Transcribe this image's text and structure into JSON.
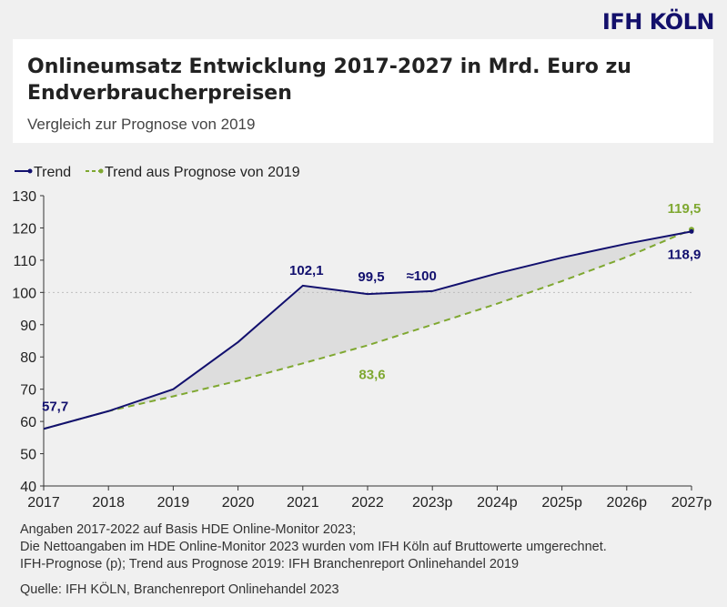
{
  "logo": "IFH KÖLN",
  "header": {
    "title": "Onlineumsatz Entwicklung 2017-2027 in Mrd. Euro zu Endverbraucherpreisen",
    "subtitle": "Vergleich zur Prognose von 2019"
  },
  "colors": {
    "trend": "#12106e",
    "forecast2019": "#7fa831",
    "area": "#d9d9d9",
    "grid": "#bdbdbd"
  },
  "chart_data": {
    "type": "line",
    "categories": [
      "2017",
      "2018",
      "2019",
      "2020",
      "2021",
      "2022",
      "2023p",
      "2024p",
      "2025p",
      "2026p",
      "2027p"
    ],
    "ylim": [
      40,
      130
    ],
    "yticks": [
      40,
      50,
      60,
      70,
      80,
      90,
      100,
      110,
      120,
      130
    ],
    "grid": "dashed line at 100",
    "legend_position": "top-left",
    "series": [
      {
        "name": "Trend",
        "values": [
          57.7,
          63.2,
          70.0,
          84.6,
          102.1,
          99.5,
          100.4,
          105.9,
          110.8,
          115.1,
          118.9
        ]
      },
      {
        "name": "Trend aus Prognose von 2019",
        "values": [
          57.7,
          63.2,
          67.8,
          72.6,
          78.0,
          83.6,
          90.0,
          96.5,
          103.5,
          111.0,
          119.5
        ]
      }
    ],
    "data_labels": [
      {
        "series": 0,
        "index": 0,
        "text": "57,7"
      },
      {
        "series": 0,
        "index": 4,
        "text": "102,1"
      },
      {
        "series": 0,
        "index": 5,
        "text": "99,5"
      },
      {
        "series": 0,
        "index": 6,
        "text": "≈100"
      },
      {
        "series": 0,
        "index": 10,
        "text": "118,9"
      },
      {
        "series": 1,
        "index": 5,
        "text": "83,6"
      },
      {
        "series": 1,
        "index": 10,
        "text": "119,5"
      }
    ]
  },
  "notes": [
    "Angaben 2017-2022 auf Basis HDE Online-Monitor 2023;",
    "Die Nettoangaben im HDE Online-Monitor 2023 wurden vom IFH Köln auf Bruttowerte umgerechnet.",
    "IFH-Prognose (p); Trend aus Prognose 2019: IFH Branchenreport Onlinehandel 2019"
  ],
  "source": "Quelle: IFH KÖLN, Branchenreport Onlinehandel 2023"
}
